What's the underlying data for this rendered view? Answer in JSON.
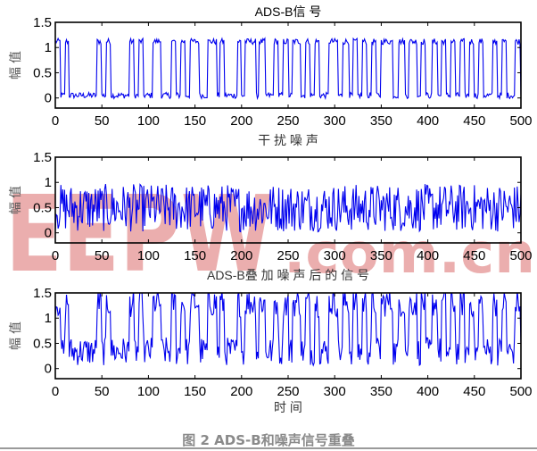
{
  "figure": {
    "caption": "图 2 ADS-B和噪声信号重叠",
    "line_color": "#0000ee",
    "watermark": {
      "text_left": "EEPW",
      "text_right": ".com.cn",
      "color": "#e9a6a6"
    }
  },
  "chart_data": [
    {
      "type": "line",
      "title": "ADS-B信 号",
      "xlabel": "",
      "ylabel": "幅 值",
      "xlim": [
        0,
        500
      ],
      "ylim": [
        -0.2,
        1.5
      ],
      "xticks": [
        0,
        50,
        100,
        150,
        200,
        250,
        300,
        350,
        400,
        450,
        500
      ],
      "yticks": [
        0,
        0.5,
        1,
        1.5
      ],
      "ytick_labels": [
        "0",
        "0.5",
        "1",
        "1.5"
      ],
      "grid": false,
      "description": "Binary pulse train, low ~0.05, high ~1.12, with small noise",
      "low_level": 0.05,
      "high_level": 1.12,
      "high_intervals": [
        [
          0,
          5
        ],
        [
          11,
          14
        ],
        [
          45,
          49
        ],
        [
          55,
          59
        ],
        [
          80,
          84
        ],
        [
          90,
          94
        ],
        [
          105,
          113
        ],
        [
          125,
          129
        ],
        [
          135,
          139
        ],
        [
          145,
          154
        ],
        [
          164,
          173
        ],
        [
          177,
          181
        ],
        [
          196,
          199
        ],
        [
          204,
          215
        ],
        [
          219,
          225
        ],
        [
          235,
          239
        ],
        [
          245,
          250
        ],
        [
          255,
          263
        ],
        [
          269,
          273
        ],
        [
          279,
          283
        ],
        [
          294,
          303
        ],
        [
          309,
          315
        ],
        [
          320,
          324
        ],
        [
          330,
          334
        ],
        [
          340,
          344
        ],
        [
          350,
          362
        ],
        [
          369,
          375
        ],
        [
          380,
          388
        ],
        [
          393,
          397
        ],
        [
          405,
          410
        ],
        [
          415,
          419
        ],
        [
          425,
          429
        ],
        [
          435,
          439
        ],
        [
          445,
          449
        ],
        [
          455,
          459
        ],
        [
          470,
          474
        ],
        [
          480,
          484
        ],
        [
          494,
          499
        ]
      ]
    },
    {
      "type": "line",
      "title": "干 扰 噪 声",
      "xlabel": "",
      "ylabel": "幅 值",
      "xlim": [
        0,
        500
      ],
      "ylim": [
        -0.2,
        1.5
      ],
      "xticks": [
        0,
        50,
        100,
        150,
        200,
        250,
        300,
        350,
        400,
        450,
        500
      ],
      "yticks": [
        0,
        0.5,
        1,
        1.5
      ],
      "ytick_labels": [
        "0",
        "0.5",
        "1",
        "1.5"
      ],
      "grid": false,
      "description": "Random noise uniformly distributed between ~0 and ~1",
      "range": [
        0.0,
        1.0
      ]
    },
    {
      "type": "line",
      "title": "ADS-B叠 加 噪 声 后 的 信 号",
      "xlabel": "时 间",
      "ylabel": "幅 值",
      "xlim": [
        0,
        500
      ],
      "ylim": [
        -0.2,
        1.5
      ],
      "xticks": [
        0,
        50,
        100,
        150,
        200,
        250,
        300,
        350,
        400,
        450,
        500
      ],
      "yticks": [
        0,
        0.5,
        1,
        1.5
      ],
      "ytick_labels": [
        "0",
        "0.5",
        "1",
        "1.5"
      ],
      "grid": false,
      "description": "Sum of ADS-B signal and noise, clipped at top by axis (1.5)"
    }
  ]
}
